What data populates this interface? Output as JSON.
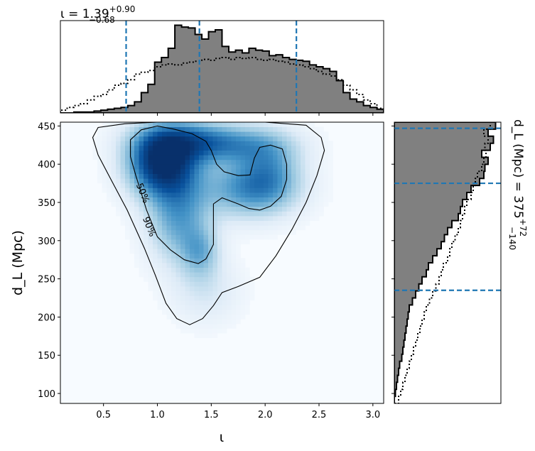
{
  "chart_data": [
    {
      "type": "heatmap",
      "name": "joint-posterior",
      "xlabel": "ι",
      "ylabel": "d_L (Mpc)",
      "xlim": [
        0.1,
        3.1
      ],
      "ylim": [
        87,
        455
      ],
      "xticks": [
        {
          "value": 0.5,
          "label": "0.5"
        },
        {
          "value": 1.0,
          "label": "1.0"
        },
        {
          "value": 1.5,
          "label": "1.5"
        },
        {
          "value": 2.0,
          "label": "2.0"
        },
        {
          "value": 2.5,
          "label": "2.5"
        },
        {
          "value": 3.0,
          "label": "3.0"
        }
      ],
      "yticks": [
        {
          "value": 100,
          "label": "100"
        },
        {
          "value": 150,
          "label": "150"
        },
        {
          "value": 200,
          "label": "200"
        },
        {
          "value": 250,
          "label": "250"
        },
        {
          "value": 300,
          "label": "300"
        },
        {
          "value": 350,
          "label": "350"
        },
        {
          "value": 400,
          "label": "400"
        },
        {
          "value": 450,
          "label": "450"
        }
      ],
      "colormap": [
        "#f7fbff",
        "#deebf7",
        "#9ecae1",
        "#4292c6",
        "#08519c",
        "#08306b"
      ],
      "density_peaks": [
        {
          "x": 1.05,
          "y": 402,
          "sx": 0.22,
          "sy": 30,
          "w": 1.0
        },
        {
          "x": 1.3,
          "y": 432,
          "sx": 0.32,
          "sy": 18,
          "w": 0.45
        },
        {
          "x": 1.2,
          "y": 330,
          "sx": 0.2,
          "sy": 40,
          "w": 0.45
        },
        {
          "x": 1.4,
          "y": 285,
          "sx": 0.12,
          "sy": 22,
          "w": 0.3
        },
        {
          "x": 1.85,
          "y": 368,
          "sx": 0.3,
          "sy": 26,
          "w": 0.5
        },
        {
          "x": 1.75,
          "y": 425,
          "sx": 0.35,
          "sy": 18,
          "w": 0.35
        },
        {
          "x": 2.05,
          "y": 395,
          "sx": 0.2,
          "sy": 30,
          "w": 0.3
        },
        {
          "x": 1.45,
          "y": 235,
          "sx": 0.22,
          "sy": 30,
          "w": 0.15
        }
      ],
      "contours": [
        {
          "label": "50%",
          "label_at": {
            "x": 0.86,
            "y": 362
          },
          "points": [
            [
              0.75,
              432
            ],
            [
              0.85,
              445
            ],
            [
              1.0,
              450
            ],
            [
              1.15,
              446
            ],
            [
              1.32,
              440
            ],
            [
              1.45,
              430
            ],
            [
              1.5,
              418
            ],
            [
              1.55,
              400
            ],
            [
              1.62,
              390
            ],
            [
              1.75,
              385
            ],
            [
              1.86,
              386
            ],
            [
              1.9,
              408
            ],
            [
              1.95,
              422
            ],
            [
              2.05,
              425
            ],
            [
              2.16,
              420
            ],
            [
              2.2,
              400
            ],
            [
              2.2,
              380
            ],
            [
              2.15,
              358
            ],
            [
              2.05,
              345
            ],
            [
              1.95,
              340
            ],
            [
              1.85,
              342
            ],
            [
              1.75,
              348
            ],
            [
              1.6,
              356
            ],
            [
              1.52,
              348
            ],
            [
              1.52,
              320
            ],
            [
              1.52,
              295
            ],
            [
              1.45,
              276
            ],
            [
              1.38,
              270
            ],
            [
              1.25,
              275
            ],
            [
              1.12,
              288
            ],
            [
              1.0,
              305
            ],
            [
              0.9,
              340
            ],
            [
              0.8,
              385
            ],
            [
              0.75,
              410
            ],
            [
              0.75,
              432
            ]
          ]
        },
        {
          "label": "90%",
          "label_at": {
            "x": 0.92,
            "y": 318
          },
          "points": [
            [
              0.4,
              435
            ],
            [
              0.45,
              448
            ],
            [
              0.7,
              453
            ],
            [
              1.0,
              455
            ],
            [
              1.5,
              455
            ],
            [
              2.0,
              455
            ],
            [
              2.38,
              451
            ],
            [
              2.52,
              435
            ],
            [
              2.55,
              418
            ],
            [
              2.48,
              385
            ],
            [
              2.38,
              350
            ],
            [
              2.25,
              315
            ],
            [
              2.1,
              280
            ],
            [
              1.95,
              252
            ],
            [
              1.75,
              240
            ],
            [
              1.6,
              232
            ],
            [
              1.52,
              215
            ],
            [
              1.42,
              198
            ],
            [
              1.3,
              190
            ],
            [
              1.18,
              198
            ],
            [
              1.08,
              218
            ],
            [
              0.98,
              255
            ],
            [
              0.88,
              290
            ],
            [
              0.72,
              340
            ],
            [
              0.55,
              385
            ],
            [
              0.45,
              412
            ],
            [
              0.4,
              435
            ]
          ]
        }
      ]
    },
    {
      "type": "bar",
      "name": "iota-marginal",
      "title": "ι = 1.39",
      "title_sup": "+0.90",
      "title_sub": "−0.68",
      "xlim": [
        0.1,
        3.1
      ],
      "ylim": [
        0,
        1.0
      ],
      "bin_edges_start": 0.1,
      "bin_width": 0.0625,
      "posterior": [
        0.0,
        0.0,
        0.01,
        0.01,
        0.01,
        0.02,
        0.03,
        0.04,
        0.05,
        0.06,
        0.08,
        0.12,
        0.22,
        0.31,
        0.55,
        0.6,
        0.7,
        0.95,
        0.93,
        0.92,
        0.85,
        0.8,
        0.88,
        0.9,
        0.72,
        0.66,
        0.68,
        0.65,
        0.7,
        0.68,
        0.67,
        0.62,
        0.63,
        0.6,
        0.58,
        0.57,
        0.56,
        0.52,
        0.5,
        0.48,
        0.45,
        0.35,
        0.22,
        0.15,
        0.12,
        0.08,
        0.06,
        0.04
      ],
      "prior": [
        0.03,
        0.06,
        0.08,
        0.1,
        0.14,
        0.18,
        0.2,
        0.25,
        0.3,
        0.32,
        0.36,
        0.42,
        0.44,
        0.46,
        0.5,
        0.52,
        0.53,
        0.52,
        0.54,
        0.55,
        0.56,
        0.58,
        0.57,
        0.59,
        0.6,
        0.58,
        0.6,
        0.59,
        0.6,
        0.58,
        0.57,
        0.58,
        0.56,
        0.55,
        0.53,
        0.52,
        0.5,
        0.48,
        0.45,
        0.42,
        0.4,
        0.36,
        0.3,
        0.25,
        0.2,
        0.14,
        0.1,
        0.05
      ],
      "quantiles": [
        0.71,
        1.39,
        2.29
      ]
    },
    {
      "type": "bar",
      "name": "distance-marginal",
      "title": "d_L (Mpc) = 375",
      "title_sup": "+72",
      "title_sub": "−140",
      "ylim": [
        87,
        455
      ],
      "xlim": [
        0,
        1.0
      ],
      "bin_edges_start": 87,
      "bin_width": 9.2,
      "posterior": [
        0.0,
        0.01,
        0.02,
        0.03,
        0.04,
        0.05,
        0.07,
        0.08,
        0.09,
        0.1,
        0.11,
        0.12,
        0.13,
        0.14,
        0.17,
        0.2,
        0.23,
        0.26,
        0.3,
        0.32,
        0.36,
        0.4,
        0.44,
        0.47,
        0.5,
        0.54,
        0.6,
        0.62,
        0.64,
        0.68,
        0.72,
        0.8,
        0.84,
        0.85,
        0.88,
        0.82,
        0.9,
        0.93,
        0.88,
        0.95
      ],
      "prior": [
        0.04,
        0.06,
        0.08,
        0.1,
        0.12,
        0.14,
        0.16,
        0.18,
        0.2,
        0.22,
        0.24,
        0.26,
        0.28,
        0.3,
        0.33,
        0.36,
        0.39,
        0.42,
        0.44,
        0.46,
        0.5,
        0.52,
        0.54,
        0.57,
        0.6,
        0.62,
        0.64,
        0.66,
        0.68,
        0.72,
        0.74,
        0.76,
        0.78,
        0.82,
        0.84,
        0.86,
        0.85,
        0.88,
        0.84,
        0.9
      ],
      "quantiles": [
        235,
        375,
        447
      ]
    }
  ]
}
